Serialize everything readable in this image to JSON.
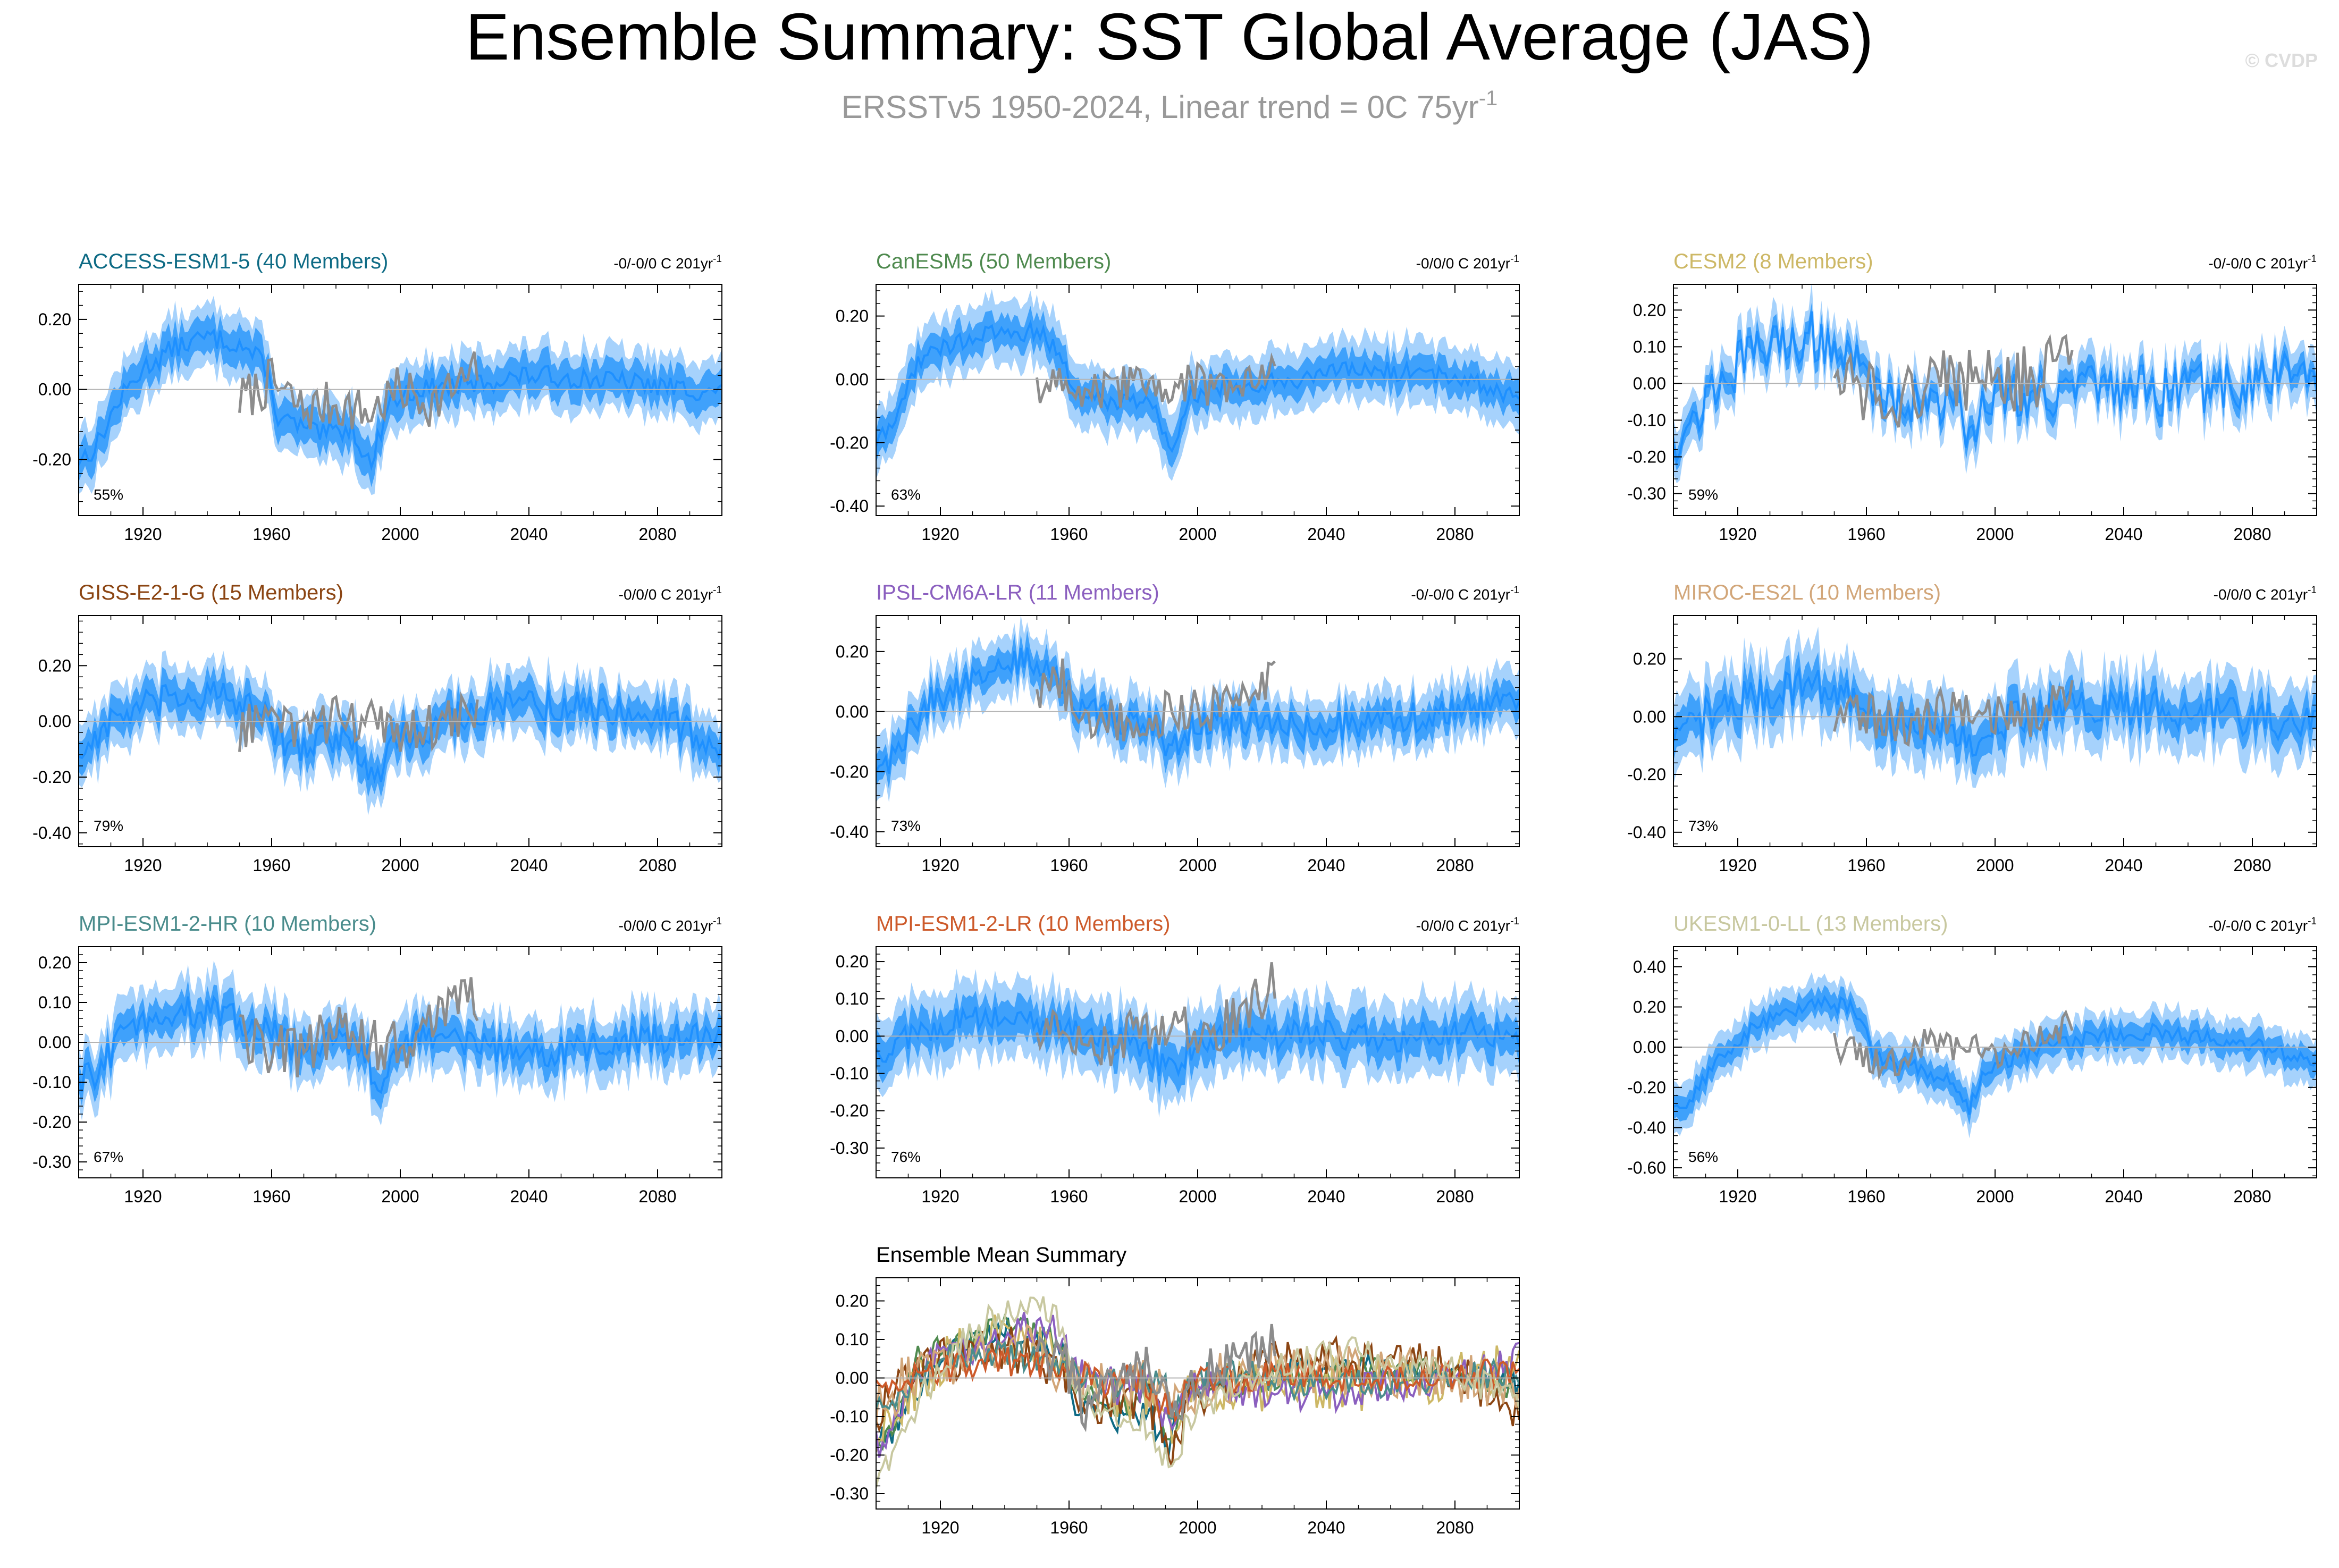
{
  "header": {
    "title": "Ensemble Summary: SST Global Average (JAS)",
    "subtitle_main": "ERSSTv5 1950-2024, Linear trend = 0C 75yr",
    "subtitle_sup": "-1",
    "watermark": "© CVDP"
  },
  "colors": {
    "ensemble_mean": "#1E90FF",
    "inner_band": "#3FA1FB",
    "outer_band": "#A6D2FC",
    "observations": "#8C8C8C",
    "zero_line": "#B4B4B4",
    "axis": "#000000"
  },
  "trend_unit_sup": "-1",
  "chart_data": [
    {
      "type": "line",
      "model": "ACCESS-ESM1-5",
      "members_label": "(40 Members)",
      "title": "ACCESS-ESM1-5 (40 Members)",
      "title_color": "#0E6B85",
      "trend": "-0/-0/0 C 201yr",
      "percent": "55%",
      "xlim": [
        1900,
        2100
      ],
      "ylim": [
        -0.36,
        0.3
      ],
      "yticks": [
        "0.20",
        "0.00",
        "-0.20"
      ],
      "xticks": [
        "1920",
        "1960",
        "2000",
        "2040",
        "2080"
      ],
      "keys": [
        [
          1900,
          -0.2
        ],
        [
          1905,
          -0.17
        ],
        [
          1912,
          -0.04
        ],
        [
          1920,
          0.06
        ],
        [
          1930,
          0.12
        ],
        [
          1940,
          0.15
        ],
        [
          1950,
          0.13
        ],
        [
          1958,
          0.07
        ],
        [
          1962,
          -0.08
        ],
        [
          1975,
          -0.13
        ],
        [
          1985,
          -0.11
        ],
        [
          1991,
          -0.22
        ],
        [
          1996,
          -0.04
        ],
        [
          2005,
          0
        ],
        [
          2020,
          0.01
        ],
        [
          2040,
          0.04
        ],
        [
          2060,
          0.03
        ],
        [
          2080,
          0.01
        ],
        [
          2100,
          -0.01
        ]
      ],
      "amp": 0.03,
      "inner": 0.05,
      "outer": 0.09,
      "obs_keys": [
        [
          1950,
          -0.03
        ],
        [
          1960,
          0.02
        ],
        [
          1970,
          -0.06
        ],
        [
          1980,
          -0.04
        ],
        [
          1990,
          -0.07
        ],
        [
          2000,
          0
        ],
        [
          2010,
          -0.04
        ],
        [
          2024,
          0.05
        ]
      ],
      "obs_amp": 0.07
    },
    {
      "type": "line",
      "model": "CanESM5",
      "members_label": "(50 Members)",
      "title": "CanESM5 (50 Members)",
      "title_color": "#4F8A4F",
      "trend": "-0/0/0 C 201yr",
      "percent": "63%",
      "xlim": [
        1900,
        2100
      ],
      "ylim": [
        -0.43,
        0.3
      ],
      "yticks": [
        "0.20",
        "0.00",
        "-0.20",
        "-0.40"
      ],
      "xticks": [
        "1920",
        "1960",
        "2000",
        "2040",
        "2080"
      ],
      "keys": [
        [
          1900,
          -0.2
        ],
        [
          1905,
          -0.15
        ],
        [
          1913,
          0.06
        ],
        [
          1925,
          0.12
        ],
        [
          1940,
          0.15
        ],
        [
          1950,
          0.15
        ],
        [
          1957,
          0.09
        ],
        [
          1962,
          -0.05
        ],
        [
          1975,
          -0.07
        ],
        [
          1985,
          -0.06
        ],
        [
          1992,
          -0.22
        ],
        [
          1997,
          -0.05
        ],
        [
          2010,
          -0.02
        ],
        [
          2030,
          0
        ],
        [
          2050,
          0.03
        ],
        [
          2070,
          0.02
        ],
        [
          2085,
          0
        ],
        [
          2100,
          -0.06
        ]
      ],
      "amp": 0.03,
      "inner": 0.05,
      "outer": 0.1,
      "obs_keys": [
        [
          1950,
          -0.04
        ],
        [
          1960,
          0
        ],
        [
          1970,
          -0.05
        ],
        [
          1980,
          -0.02
        ],
        [
          1990,
          -0.03
        ],
        [
          2000,
          -0.02
        ],
        [
          2010,
          0
        ],
        [
          2024,
          0.05
        ]
      ],
      "obs_amp": 0.07
    },
    {
      "type": "line",
      "model": "CESM2",
      "members_label": "(8 Members)",
      "title": "CESM2 (8 Members)",
      "title_color": "#CDB866",
      "trend": "-0/-0/0 C 201yr",
      "percent": "59%",
      "xlim": [
        1900,
        2100
      ],
      "ylim": [
        -0.36,
        0.27
      ],
      "yticks": [
        "0.20",
        "0.10",
        "0.00",
        "-0.10",
        "-0.20",
        "-0.30"
      ],
      "xticks": [
        "1920",
        "1960",
        "2000",
        "2040",
        "2080"
      ],
      "keys": [
        [
          1900,
          -0.15
        ],
        [
          1905,
          -0.12
        ],
        [
          1915,
          0.02
        ],
        [
          1925,
          0.08
        ],
        [
          1935,
          0.12
        ],
        [
          1945,
          0.13
        ],
        [
          1955,
          0.07
        ],
        [
          1962,
          -0.02
        ],
        [
          1975,
          -0.05
        ],
        [
          1985,
          -0.04
        ],
        [
          1992,
          -0.12
        ],
        [
          2000,
          -0.03
        ],
        [
          2020,
          -0.02
        ],
        [
          2040,
          -0.02
        ],
        [
          2060,
          -0.02
        ],
        [
          2080,
          0
        ],
        [
          2100,
          0.05
        ]
      ],
      "amp": 0.07,
      "inner": 0.03,
      "outer": 0.07,
      "obs_keys": [
        [
          1950,
          0.03
        ],
        [
          1960,
          -0.02
        ],
        [
          1970,
          -0.04
        ],
        [
          1980,
          0.02
        ],
        [
          1990,
          0
        ],
        [
          2000,
          0.02
        ],
        [
          2010,
          0.01
        ],
        [
          2024,
          0.08
        ]
      ],
      "obs_amp": 0.09
    },
    {
      "type": "line",
      "model": "GISS-E2-1-G",
      "members_label": "(15 Members)",
      "title": "GISS-E2-1-G (15 Members)",
      "title_color": "#8B4513",
      "trend": "-0/0/0 C 201yr",
      "percent": "79%",
      "xlim": [
        1900,
        2100
      ],
      "ylim": [
        -0.45,
        0.38
      ],
      "yticks": [
        "0.20",
        "0.00",
        "-0.20",
        "-0.40"
      ],
      "xticks": [
        "1920",
        "1960",
        "2000",
        "2040",
        "2080"
      ],
      "keys": [
        [
          1900,
          -0.12
        ],
        [
          1910,
          0
        ],
        [
          1920,
          0.05
        ],
        [
          1930,
          0.08
        ],
        [
          1940,
          0.1
        ],
        [
          1950,
          0.06
        ],
        [
          1960,
          0
        ],
        [
          1965,
          -0.12
        ],
        [
          1975,
          -0.05
        ],
        [
          1985,
          -0.08
        ],
        [
          1992,
          -0.22
        ],
        [
          1998,
          -0.06
        ],
        [
          2010,
          -0.02
        ],
        [
          2020,
          0.03
        ],
        [
          2035,
          0.06
        ],
        [
          2050,
          0.05
        ],
        [
          2065,
          0.05
        ],
        [
          2080,
          0.02
        ],
        [
          2090,
          -0.03
        ],
        [
          2100,
          -0.1
        ]
      ],
      "amp": 0.06,
      "inner": 0.06,
      "outer": 0.11,
      "obs_keys": [
        [
          1950,
          -0.03
        ],
        [
          1960,
          0.02
        ],
        [
          1970,
          -0.06
        ],
        [
          1980,
          0.02
        ],
        [
          1990,
          0
        ],
        [
          2000,
          -0.03
        ],
        [
          2010,
          -0.02
        ],
        [
          2024,
          0.05
        ]
      ],
      "obs_amp": 0.08
    },
    {
      "type": "line",
      "model": "IPSL-CM6A-LR",
      "members_label": "(11 Members)",
      "title": "IPSL-CM6A-LR (11 Members)",
      "title_color": "#8B5FBF",
      "trend": "-0/-0/0 C 201yr",
      "percent": "73%",
      "xlim": [
        1900,
        2100
      ],
      "ylim": [
        -0.45,
        0.32
      ],
      "yticks": [
        "0.20",
        "0.00",
        "-0.20",
        "-0.40"
      ],
      "xticks": [
        "1920",
        "1960",
        "2000",
        "2040",
        "2080"
      ],
      "keys": [
        [
          1900,
          -0.2
        ],
        [
          1905,
          -0.15
        ],
        [
          1915,
          0.02
        ],
        [
          1925,
          0.08
        ],
        [
          1935,
          0.12
        ],
        [
          1945,
          0.17
        ],
        [
          1955,
          0.14
        ],
        [
          1962,
          0.02
        ],
        [
          1975,
          -0.03
        ],
        [
          1985,
          -0.04
        ],
        [
          1992,
          -0.13
        ],
        [
          2000,
          -0.03
        ],
        [
          2020,
          -0.04
        ],
        [
          2040,
          -0.05
        ],
        [
          2060,
          -0.03
        ],
        [
          2080,
          0
        ],
        [
          2095,
          0.04
        ],
        [
          2100,
          0.06
        ]
      ],
      "amp": 0.05,
      "inner": 0.05,
      "outer": 0.1,
      "obs_keys": [
        [
          1950,
          0.06
        ],
        [
          1958,
          0.1
        ],
        [
          1960,
          0.04
        ],
        [
          1970,
          -0.04
        ],
        [
          1980,
          -0.02
        ],
        [
          1990,
          0
        ],
        [
          2000,
          0.02
        ],
        [
          2010,
          0
        ],
        [
          2024,
          0.12
        ]
      ],
      "obs_amp": 0.08
    },
    {
      "type": "line",
      "model": "MIROC-ES2L",
      "members_label": "(10 Members)",
      "title": "MIROC-ES2L (10 Members)",
      "title_color": "#D2A679",
      "trend": "-0/0/0 C 201yr",
      "percent": "73%",
      "xlim": [
        1900,
        2100
      ],
      "ylim": [
        -0.45,
        0.35
      ],
      "yticks": [
        "0.20",
        "0.00",
        "-0.20",
        "-0.40"
      ],
      "xticks": [
        "1920",
        "1960",
        "2000",
        "2040",
        "2080"
      ],
      "keys": [
        [
          1900,
          -0.1
        ],
        [
          1910,
          0
        ],
        [
          1920,
          0.05
        ],
        [
          1930,
          0.08
        ],
        [
          1940,
          0.12
        ],
        [
          1950,
          0.1
        ],
        [
          1960,
          0
        ],
        [
          1975,
          -0.04
        ],
        [
          1985,
          -0.02
        ],
        [
          1992,
          -0.1
        ],
        [
          2000,
          -0.02
        ],
        [
          2020,
          0.02
        ],
        [
          2040,
          0.03
        ],
        [
          2060,
          0.02
        ],
        [
          2080,
          0
        ],
        [
          2100,
          -0.03
        ]
      ],
      "amp": 0.07,
      "inner": 0.06,
      "outer": 0.13,
      "obs_keys": [
        [
          1950,
          0
        ],
        [
          1960,
          0
        ],
        [
          1970,
          -0.03
        ],
        [
          1980,
          0
        ],
        [
          1990,
          0.04
        ],
        [
          2000,
          0.02
        ],
        [
          2010,
          0
        ],
        [
          2024,
          0.06
        ]
      ],
      "obs_amp": 0.08
    },
    {
      "type": "line",
      "model": "MPI-ESM1-2-HR",
      "members_label": "(10 Members)",
      "title": "MPI-ESM1-2-HR (10 Members)",
      "title_color": "#4A8C8C",
      "trend": "-0/0/0 C 201yr",
      "percent": "67%",
      "xlim": [
        1900,
        2100
      ],
      "ylim": [
        -0.34,
        0.24
      ],
      "yticks": [
        "0.20",
        "0.10",
        "0.00",
        "-0.10",
        "-0.20",
        "-0.30"
      ],
      "xticks": [
        "1920",
        "1960",
        "2000",
        "2040",
        "2080"
      ],
      "keys": [
        [
          1900,
          -0.1
        ],
        [
          1905,
          -0.08
        ],
        [
          1915,
          0.03
        ],
        [
          1925,
          0.07
        ],
        [
          1940,
          0.08
        ],
        [
          1950,
          0.05
        ],
        [
          1960,
          0.03
        ],
        [
          1970,
          -0.03
        ],
        [
          1980,
          0
        ],
        [
          1990,
          -0.02
        ],
        [
          1992,
          -0.13
        ],
        [
          2000,
          0
        ],
        [
          2010,
          0.02
        ],
        [
          2030,
          -0.02
        ],
        [
          2050,
          -0.02
        ],
        [
          2070,
          0
        ],
        [
          2085,
          0.01
        ],
        [
          2100,
          0.02
        ]
      ],
      "amp": 0.04,
      "inner": 0.04,
      "outer": 0.08,
      "obs_keys": [
        [
          1950,
          0.03
        ],
        [
          1960,
          -0.03
        ],
        [
          1970,
          -0.02
        ],
        [
          1980,
          0.03
        ],
        [
          1990,
          0
        ],
        [
          2000,
          -0.02
        ],
        [
          2010,
          0.03
        ],
        [
          2024,
          0.12
        ]
      ],
      "obs_amp": 0.07
    },
    {
      "type": "line",
      "model": "MPI-ESM1-2-LR",
      "members_label": "(10 Members)",
      "title": "MPI-ESM1-2-LR (10 Members)",
      "title_color": "#CD5A2A",
      "trend": "-0/0/0 C 201yr",
      "percent": "76%",
      "xlim": [
        1900,
        2100
      ],
      "ylim": [
        -0.38,
        0.24
      ],
      "yticks": [
        "0.20",
        "0.10",
        "0.00",
        "-0.10",
        "-0.20",
        "-0.30"
      ],
      "xticks": [
        "1920",
        "1960",
        "2000",
        "2040",
        "2080"
      ],
      "keys": [
        [
          1900,
          -0.05
        ],
        [
          1910,
          0
        ],
        [
          1925,
          0.04
        ],
        [
          1940,
          0.05
        ],
        [
          1950,
          0.04
        ],
        [
          1960,
          0.02
        ],
        [
          1970,
          -0.02
        ],
        [
          1980,
          0
        ],
        [
          1992,
          -0.1
        ],
        [
          2000,
          0
        ],
        [
          2020,
          0
        ],
        [
          2040,
          0.01
        ],
        [
          2060,
          -0.01
        ],
        [
          2080,
          0.01
        ],
        [
          2100,
          0.01
        ]
      ],
      "amp": 0.04,
      "inner": 0.05,
      "outer": 0.1,
      "obs_keys": [
        [
          1950,
          0.03
        ],
        [
          1960,
          -0.02
        ],
        [
          1970,
          -0.05
        ],
        [
          1980,
          0.02
        ],
        [
          1990,
          0
        ],
        [
          2000,
          0.02
        ],
        [
          2010,
          0.03
        ],
        [
          2024,
          0.15
        ]
      ],
      "obs_amp": 0.07
    },
    {
      "type": "line",
      "model": "UKESM1-0-LL",
      "members_label": "(13 Members)",
      "title": "UKESM1-0-LL (13 Members)",
      "title_color": "#C8C8A0",
      "trend": "-0/-0/0 C 201yr",
      "percent": "56%",
      "xlim": [
        1900,
        2100
      ],
      "ylim": [
        -0.65,
        0.5
      ],
      "yticks": [
        "0.40",
        "0.20",
        "0.00",
        "-0.20",
        "-0.40",
        "-0.60"
      ],
      "xticks": [
        "1920",
        "1960",
        "2000",
        "2040",
        "2080"
      ],
      "keys": [
        [
          1900,
          -0.32
        ],
        [
          1905,
          -0.25
        ],
        [
          1915,
          -0.05
        ],
        [
          1925,
          0.1
        ],
        [
          1935,
          0.18
        ],
        [
          1945,
          0.22
        ],
        [
          1955,
          0.2
        ],
        [
          1960,
          0.1
        ],
        [
          1962,
          -0.05
        ],
        [
          1975,
          -0.1
        ],
        [
          1985,
          -0.15
        ],
        [
          1992,
          -0.3
        ],
        [
          1997,
          -0.12
        ],
        [
          2010,
          -0.03
        ],
        [
          2030,
          0.05
        ],
        [
          2050,
          0.08
        ],
        [
          2060,
          0.05
        ],
        [
          2080,
          0.02
        ],
        [
          2100,
          -0.08
        ]
      ],
      "amp": 0.04,
      "inner": 0.06,
      "outer": 0.12,
      "obs_keys": [
        [
          1950,
          0
        ],
        [
          1960,
          -0.05
        ],
        [
          1970,
          -0.08
        ],
        [
          1980,
          0.05
        ],
        [
          1990,
          0
        ],
        [
          2000,
          -0.02
        ],
        [
          2010,
          0
        ],
        [
          2024,
          0.12
        ]
      ],
      "obs_amp": 0.08
    },
    {
      "type": "line",
      "title": "Ensemble Mean Summary",
      "xlim": [
        1900,
        2100
      ],
      "ylim": [
        -0.34,
        0.26
      ],
      "yticks": [
        "0.20",
        "0.10",
        "0.00",
        "-0.10",
        "-0.20",
        "-0.30"
      ],
      "xticks": [
        "1920",
        "1960",
        "2000",
        "2040",
        "2080"
      ],
      "series_colors": [
        "#0E6B85",
        "#4F8A4F",
        "#CDB866",
        "#8B4513",
        "#8B5FBF",
        "#D2A679",
        "#4A8C8C",
        "#CD5A2A",
        "#C8C8A0",
        "#8C8C8C"
      ]
    }
  ]
}
